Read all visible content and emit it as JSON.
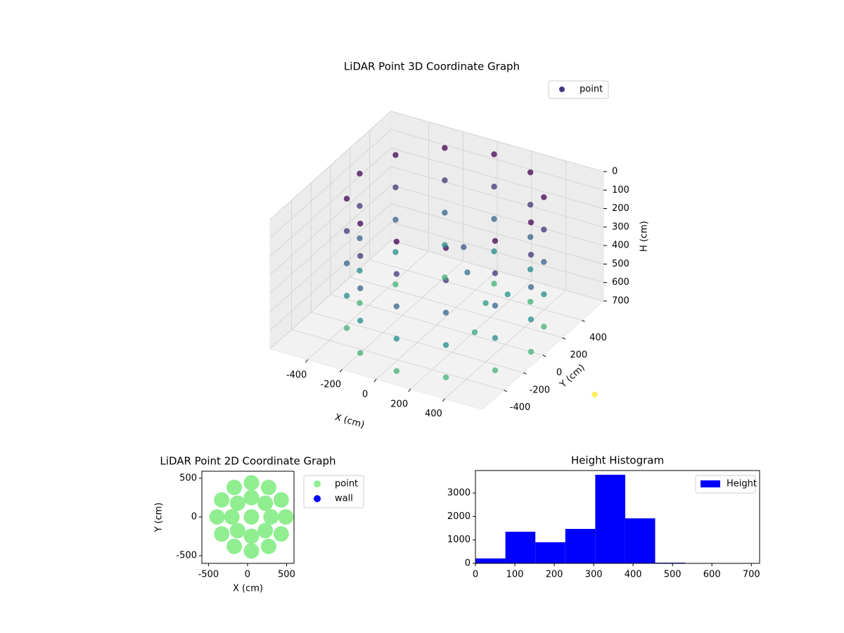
{
  "chart_data": [
    {
      "type": "scatter3d",
      "title": "LiDAR Point 3D Coordinate Graph",
      "xlabel": "X (cm)",
      "ylabel": "Y (cm)",
      "zlabel": "H (cm)",
      "xlim": [
        -620,
        620
      ],
      "ylim": [
        -620,
        620
      ],
      "zlim": [
        0,
        700
      ],
      "z_inverted": true,
      "xticks": [
        -400,
        -200,
        0,
        200,
        400
      ],
      "yticks": [
        -400,
        -200,
        0,
        200,
        400
      ],
      "zticks": [
        0,
        100,
        200,
        300,
        400,
        500,
        600,
        700
      ],
      "cmap": "viridis",
      "legend": "upper right",
      "grid": true,
      "series": [
        {
          "name": "point",
          "color": "#433a83",
          "x": [
            550,
            483,
            300,
            50,
            -200,
            -383,
            -450,
            -383,
            -200,
            50,
            300,
            483,
            550,
            483,
            300,
            50,
            -200,
            -383,
            -450,
            -383,
            -200,
            50,
            300,
            483,
            550,
            483,
            300,
            50,
            -200,
            -383,
            -450,
            -383,
            -200,
            50,
            300,
            483,
            550,
            483,
            300,
            50,
            -200,
            -383,
            -450,
            -383,
            -200,
            50,
            300,
            483,
            550,
            483,
            300,
            50,
            -200,
            -383,
            -450,
            -383,
            -200,
            50,
            300,
            483,
            100,
            150,
            200,
            300,
            250,
            678
          ],
          "y": [
            0,
            250,
            433,
            500,
            433,
            250,
            0,
            -250,
            -433,
            -500,
            -433,
            -250,
            0,
            250,
            433,
            500,
            433,
            250,
            0,
            -250,
            -433,
            -500,
            -433,
            -250,
            0,
            250,
            433,
            500,
            433,
            250,
            0,
            -250,
            -433,
            -500,
            -433,
            -250,
            0,
            250,
            433,
            500,
            433,
            250,
            0,
            -250,
            -433,
            -500,
            -433,
            -250,
            0,
            250,
            433,
            500,
            433,
            250,
            0,
            -250,
            -433,
            -500,
            -433,
            -250,
            100,
            50,
            150,
            200,
            -50,
            428
          ],
          "z": [
            0,
            0,
            0,
            0,
            0,
            0,
            0,
            0,
            0,
            0,
            0,
            0,
            175,
            175,
            175,
            175,
            175,
            175,
            175,
            175,
            175,
            175,
            175,
            175,
            350,
            350,
            350,
            350,
            350,
            350,
            350,
            350,
            350,
            350,
            350,
            350,
            525,
            525,
            525,
            525,
            525,
            525,
            525,
            525,
            525,
            525,
            525,
            525,
            700,
            700,
            700,
            700,
            700,
            700,
            700,
            700,
            700,
            700,
            700,
            700,
            300,
            400,
            600,
            550,
            650,
            1100
          ]
        }
      ]
    },
    {
      "type": "scatter",
      "title": "LiDAR Point 2D Coordinate Graph",
      "xlabel": "X (cm)",
      "ylabel": "Y (cm)",
      "xlim": [
        -585,
        595
      ],
      "ylim": [
        -600,
        590
      ],
      "xticks": [
        -500,
        0,
        500
      ],
      "yticks": [
        -500,
        0,
        500
      ],
      "legend": "outside upper right",
      "series": [
        {
          "name": "point",
          "color": "#90ee90",
          "x": [
            50,
            300,
            227,
            50,
            -127,
            -200,
            -127,
            50,
            227,
            490,
            431,
            270,
            50,
            -170,
            -331,
            -390,
            -331,
            -170,
            50,
            270,
            431
          ],
          "y": [
            0,
            0,
            177,
            250,
            177,
            0,
            -177,
            -250,
            -177,
            0,
            220,
            381,
            440,
            381,
            220,
            0,
            -220,
            -381,
            -440,
            -381,
            -220
          ]
        },
        {
          "name": "wall",
          "color": "#0000ff",
          "x": [],
          "y": []
        }
      ]
    },
    {
      "type": "hist",
      "title": "Height Histogram",
      "name": "Height",
      "color": "#0000ff",
      "bins": [
        0,
        76,
        152,
        228,
        304,
        380,
        456,
        532,
        608,
        684,
        760
      ],
      "counts": [
        210,
        1350,
        900,
        1470,
        3780,
        1920,
        30,
        5,
        2,
        1
      ],
      "xlim": [
        0,
        721
      ],
      "ylim": [
        0,
        3960
      ],
      "xticks": [
        0,
        100,
        200,
        300,
        400,
        500,
        600,
        700
      ],
      "yticks": [
        0,
        1000,
        2000,
        3000
      ],
      "legend": "upper right"
    }
  ]
}
